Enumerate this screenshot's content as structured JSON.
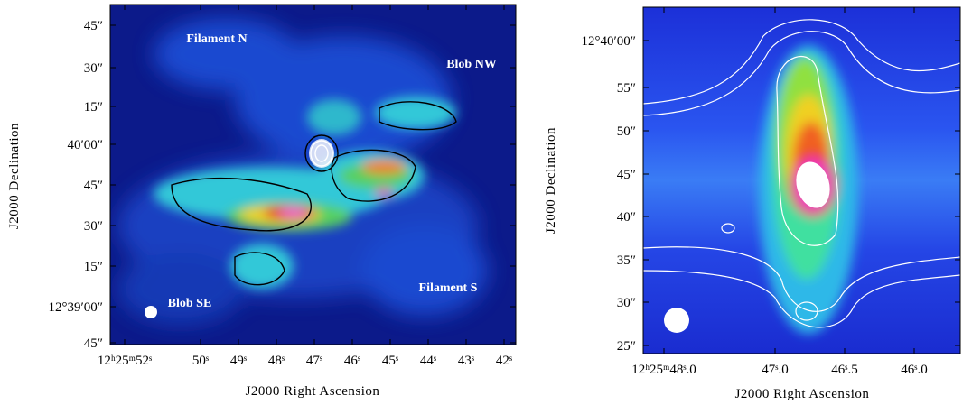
{
  "panels": [
    {
      "x_label": "J2000 Right Ascension",
      "y_label": "J2000 Declination",
      "x_ticks": [
        "12ʰ25ᵐ52ˢ",
        "50ˢ",
        "49ˢ",
        "48ˢ",
        "47ˢ",
        "46ˢ",
        "45ˢ",
        "44ˢ",
        "43ˢ",
        "42ˢ"
      ],
      "y_ticks": [
        "45″",
        "30″",
        "15″",
        "40′00″",
        "45″",
        "30″",
        "15″",
        "12°39′00″",
        "45″"
      ],
      "annotations": [
        "Filament N",
        "Blob NW",
        "Filament S",
        "Blob SE"
      ]
    },
    {
      "x_label": "J2000 Right Ascension",
      "y_label": "J2000 Declination",
      "x_ticks": [
        "12ʰ25ᵐ48ˢ.0",
        "47ˢ.0",
        "46ˢ.5",
        "46ˢ.0"
      ],
      "y_ticks": [
        "12°40′00″",
        "55″",
        "50″",
        "45″",
        "40″",
        "35″",
        "30″",
        "25″"
      ],
      "annotations": []
    }
  ]
}
